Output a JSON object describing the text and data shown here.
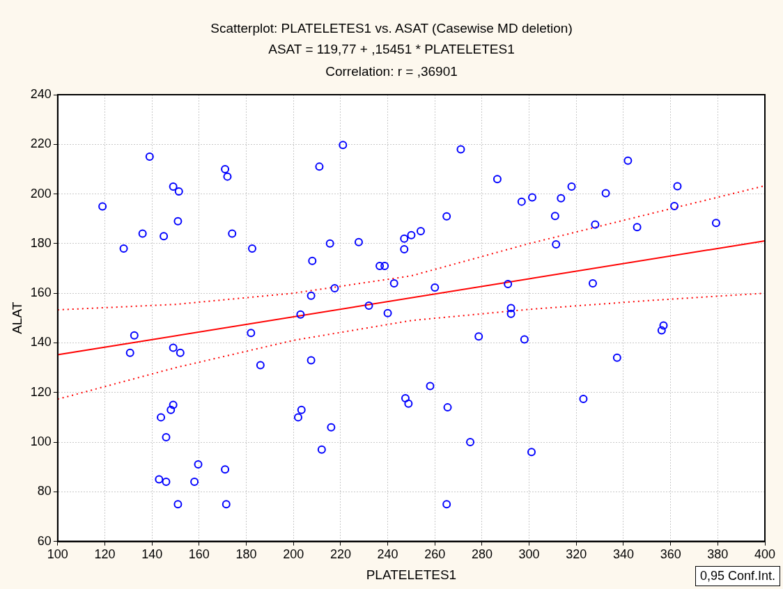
{
  "chart_data": {
    "type": "scatter",
    "title": "Scatterplot: PLATELETES1 vs. ASAT (Casewise MD deletion)",
    "subtitle": "ASAT = 119,77 + ,15451 * PLATELETES1",
    "xlabel": "PLATELETES1",
    "ylabel": "ALAT",
    "annotations": [
      "Correlation: r = ,36901",
      "0,95 Conf.Int."
    ],
    "xlim": [
      100,
      400
    ],
    "xticks": [
      100,
      120,
      140,
      160,
      180,
      200,
      220,
      240,
      260,
      280,
      300,
      320,
      340,
      360,
      380,
      400
    ],
    "ylim": [
      60,
      240
    ],
    "yticks": [
      60,
      80,
      100,
      120,
      140,
      160,
      180,
      200,
      220,
      240
    ],
    "grid": true,
    "marker": "circle",
    "series": [
      {
        "type": "scatter",
        "color": "#0000ff",
        "x": [
          119,
          128,
          136,
          139,
          132.5,
          130.7,
          149,
          151.4,
          151,
          145,
          149,
          152,
          149,
          148,
          143.8,
          146,
          143,
          146,
          151,
          159.6,
          158,
          171,
          171.5,
          171,
          172,
          174,
          182.5,
          182,
          186,
          203,
          207.5,
          208,
          207.5,
          202,
          203.4,
          211,
          221,
          215.5,
          217.5,
          212,
          216,
          227.7,
          232,
          236.6,
          238.7,
          240,
          242.7,
          247,
          247,
          250,
          254,
          247.5,
          248.8,
          258,
          260,
          265,
          265.4,
          265,
          271,
          275,
          278.6,
          286.5,
          291,
          292.3,
          292.3,
          296.8,
          301.3,
          298,
          301,
          311,
          311.4,
          313.5,
          318,
          323,
          332.5,
          327,
          337.3,
          341.9,
          345.8,
          328,
          362.9,
          361.6,
          379.3,
          356.2,
          357
        ],
        "values": [
          195,
          178,
          184,
          215,
          143,
          136,
          203,
          201,
          189,
          183,
          138,
          136,
          115,
          113,
          110,
          102,
          85,
          84,
          75,
          91,
          84,
          89,
          75,
          210,
          207,
          184,
          178,
          144,
          131,
          151.4,
          159,
          173,
          133,
          110,
          113,
          211,
          219.7,
          180,
          162,
          97,
          106,
          180.6,
          155,
          171,
          171,
          152,
          164,
          182,
          177.7,
          183.4,
          185,
          117.7,
          115.5,
          122.6,
          162.3,
          191,
          114,
          75,
          218,
          100,
          142.6,
          206,
          163.7,
          154,
          151.7,
          196.9,
          198.6,
          141.4,
          96,
          191.1,
          179.7,
          198.3,
          203,
          117.4,
          200.3,
          164,
          134,
          213.4,
          186.6,
          187.7,
          203.1,
          195.1,
          188.3,
          145,
          147
        ]
      },
      {
        "type": "line",
        "color": "#ff0000",
        "marker": "none",
        "line_style": "solid",
        "x": [
          100,
          400
        ],
        "values": [
          135.2,
          181.1
        ]
      },
      {
        "type": "line",
        "color": "#ff0000",
        "marker": "none",
        "line_style": "dotted",
        "x": [
          100,
          150,
          200,
          250,
          300,
          350,
          400
        ],
        "values": [
          153.3,
          155.5,
          160,
          167,
          180,
          191.7,
          203.3
        ]
      },
      {
        "type": "line",
        "color": "#ff0000",
        "marker": "none",
        "line_style": "dotted",
        "x": [
          100,
          150,
          200,
          250,
          300,
          350,
          400
        ],
        "values": [
          117.3,
          130,
          141,
          149,
          153.5,
          157,
          160
        ]
      }
    ]
  }
}
